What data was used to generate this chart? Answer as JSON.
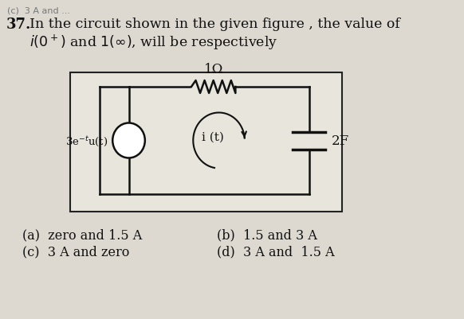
{
  "bg_color": "#ddd9d0",
  "text_color": "#111111",
  "circuit_bg": "#e8e5dc",
  "circuit_border": "#222222",
  "top_remnant": "(c)  3 A and ...",
  "q_number": "37.",
  "q_line1": "In the circuit shown in the given figure , the value of",
  "q_line2_pre": "i",
  "q_line2_mid": "(0",
  "q_line2_post": ") and 1(∞), will be respectively",
  "resistor_label": "1Ω",
  "source_label": "3e⁻tu(t)",
  "current_label": "i (t)",
  "capacitor_label": "2F",
  "opt_a": "(a)  zero and 1.5 A",
  "opt_b": "(b)  1.5 and 3 A",
  "opt_c": "(c)  3 A and zero",
  "opt_d": "(d)  3 A and  1.5 A",
  "figsize": [
    5.82,
    4.02
  ],
  "dpi": 100
}
